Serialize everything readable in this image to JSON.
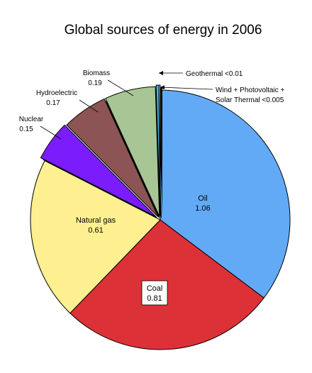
{
  "chart_data": {
    "type": "pie",
    "title": "Global sources of energy in 2006",
    "slices": [
      {
        "label": "Oil",
        "value_text": "1.06",
        "value": 1.06,
        "color": "#62aaf6"
      },
      {
        "label": "Coal",
        "value_text": "0.81",
        "value": 0.81,
        "color": "#dc3137"
      },
      {
        "label": "Natural gas",
        "value_text": "0.61",
        "value": 0.61,
        "color": "#fef091"
      },
      {
        "label": "Nuclear",
        "value_text": "0.15",
        "value": 0.15,
        "color": "#7a1cfb"
      },
      {
        "label": "Hydroelectric",
        "value_text": "0.17",
        "value": 0.17,
        "color": "#8c5454"
      },
      {
        "label": "Biomass",
        "value_text": "0.19",
        "value": 0.19,
        "color": "#a7c595"
      },
      {
        "label": "Geothermal",
        "value_text": "<0.01",
        "value": 0.01,
        "color": "#4db6e8"
      },
      {
        "label": "Wind + Photovoltaic +",
        "label2": "Solar Thermal",
        "value_text": "<0.005",
        "value": 0.005,
        "color": "#f2ef74"
      }
    ]
  }
}
